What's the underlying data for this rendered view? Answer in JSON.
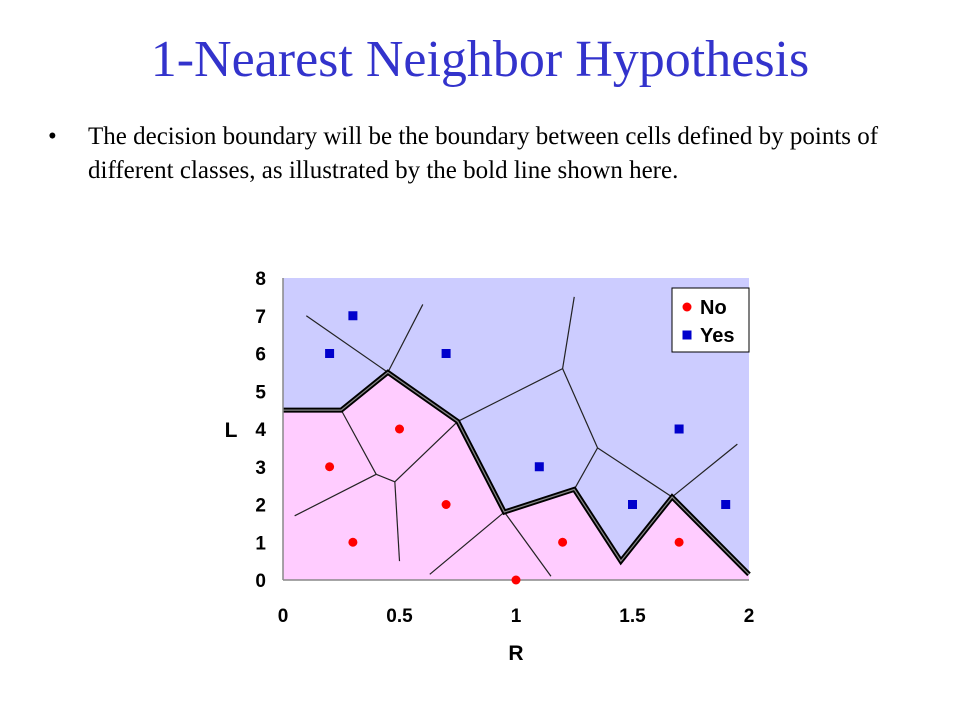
{
  "slide": {
    "title": "1-Nearest Neighbor Hypothesis",
    "bullets": [
      "The decision boundary will be the boundary between cells defined by points of different classes, as illustrated by the bold line shown here."
    ]
  },
  "chart_data": {
    "type": "scatter",
    "title": "",
    "xlabel": "R",
    "ylabel": "L",
    "xlim": [
      0,
      2
    ],
    "ylim": [
      0,
      8
    ],
    "x_ticks": [
      "0",
      "0.5",
      "1",
      "1.5",
      "2"
    ],
    "y_ticks": [
      "0",
      "1",
      "2",
      "3",
      "4",
      "5",
      "6",
      "7",
      "8"
    ],
    "legend_position": "top-right",
    "series": [
      {
        "name": "No",
        "color": "#ff0000",
        "marker": "circle",
        "points": [
          [
            0.2,
            3
          ],
          [
            0.3,
            1
          ],
          [
            0.5,
            4
          ],
          [
            0.7,
            2
          ],
          [
            1.0,
            0
          ],
          [
            1.2,
            1
          ],
          [
            1.7,
            1
          ]
        ]
      },
      {
        "name": "Yes",
        "color": "#0000cc",
        "marker": "square",
        "points": [
          [
            0.2,
            6
          ],
          [
            0.3,
            7
          ],
          [
            0.7,
            6
          ],
          [
            1.1,
            3
          ],
          [
            1.5,
            2
          ],
          [
            1.7,
            4
          ],
          [
            1.9,
            2
          ]
        ]
      }
    ],
    "regions": {
      "no_color": "#ffccff",
      "yes_color": "#ccccff"
    },
    "decision_boundary": [
      [
        0,
        4.5
      ],
      [
        0.25,
        4.5
      ],
      [
        0.45,
        5.5
      ],
      [
        0.75,
        4.2
      ],
      [
        0.95,
        1.8
      ],
      [
        1.25,
        2.4
      ],
      [
        1.45,
        0.5
      ],
      [
        1.67,
        2.2
      ],
      [
        2.0,
        0.15
      ]
    ],
    "cell_edges": [
      [
        [
          0.1,
          7.0
        ],
        [
          0.45,
          5.5
        ]
      ],
      [
        [
          0.45,
          5.5
        ],
        [
          0.6,
          7.3
        ]
      ],
      [
        [
          0.75,
          4.2
        ],
        [
          1.2,
          5.6
        ]
      ],
      [
        [
          1.2,
          5.6
        ],
        [
          1.25,
          7.5
        ]
      ],
      [
        [
          1.2,
          5.6
        ],
        [
          1.35,
          3.5
        ]
      ],
      [
        [
          1.35,
          3.5
        ],
        [
          1.25,
          2.4
        ]
      ],
      [
        [
          1.35,
          3.5
        ],
        [
          1.67,
          2.2
        ]
      ],
      [
        [
          1.67,
          2.2
        ],
        [
          1.95,
          3.6
        ]
      ],
      [
        [
          0.25,
          4.5
        ],
        [
          0.4,
          2.8
        ]
      ],
      [
        [
          0.4,
          2.8
        ],
        [
          0.05,
          1.7
        ]
      ],
      [
        [
          0.4,
          2.8
        ],
        [
          0.48,
          2.6
        ]
      ],
      [
        [
          0.48,
          2.6
        ],
        [
          0.75,
          4.2
        ]
      ],
      [
        [
          0.48,
          2.6
        ],
        [
          0.5,
          0.5
        ]
      ],
      [
        [
          0.95,
          1.8
        ],
        [
          0.63,
          0.15
        ]
      ],
      [
        [
          0.95,
          1.8
        ],
        [
          1.15,
          0.1
        ]
      ]
    ]
  }
}
